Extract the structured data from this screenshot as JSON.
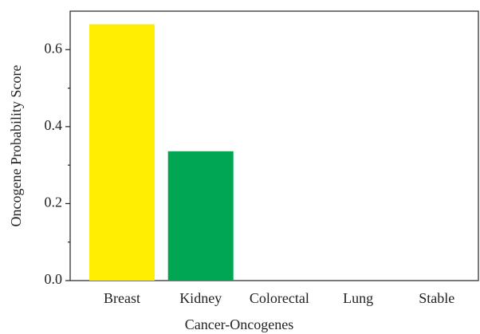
{
  "chart_data": {
    "type": "bar",
    "xlabel": "Cancer-Oncogenes",
    "ylabel": "Oncogene Probability Score",
    "categories": [
      "Breast",
      "Kidney",
      "Colorectal",
      "Lung",
      "Stable"
    ],
    "values": [
      0.666,
      0.336,
      0,
      0,
      0
    ],
    "colors": [
      "#ffee00",
      "#00a651",
      "#e41a1c",
      "#377eb8",
      "#984ea3"
    ],
    "ylim": [
      0,
      0.7
    ],
    "yticks": [
      {
        "value": 0,
        "label": "0.0"
      },
      0.2,
      0.4,
      0.6
    ],
    "minor_yticks": [
      0.1,
      0.3,
      0.5
    ],
    "grid": false
  }
}
